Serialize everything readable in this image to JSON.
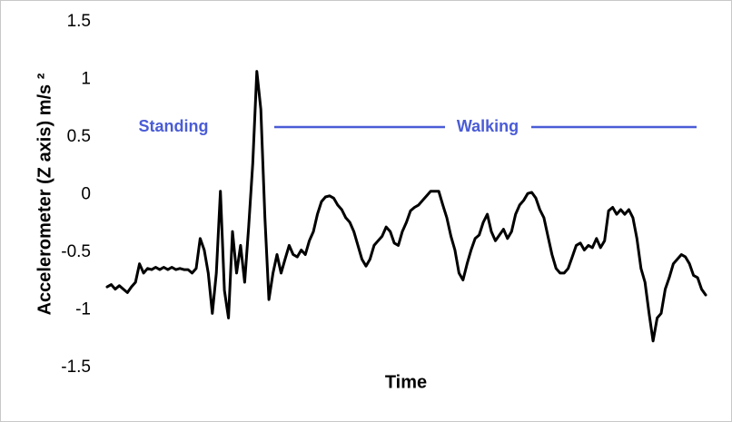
{
  "chart_data": {
    "type": "line",
    "y_label": "Accelerometer (Z axis) m/s ²",
    "x_label": "Time",
    "annotations": [
      {
        "text": "Standing"
      },
      {
        "text": "Walking"
      }
    ],
    "annotation_color": "#4a5cd6",
    "color": "#000000",
    "ylim": [
      -1.5,
      1.5
    ],
    "yticks": [
      1.5,
      1,
      0.5,
      0,
      -0.5,
      -1,
      -1.5
    ],
    "grid": false,
    "values": [
      -0.8,
      -0.78,
      -0.82,
      -0.79,
      -0.82,
      -0.85,
      -0.8,
      -0.76,
      -0.6,
      -0.68,
      -0.64,
      -0.65,
      -0.63,
      -0.65,
      -0.63,
      -0.65,
      -0.63,
      -0.65,
      -0.64,
      -0.65,
      -0.65,
      -0.68,
      -0.64,
      -0.38,
      -0.48,
      -0.68,
      -1.03,
      -0.68,
      0.03,
      -0.83,
      -1.07,
      -0.32,
      -0.68,
      -0.44,
      -0.76,
      -0.28,
      0.27,
      1.07,
      0.74,
      -0.2,
      -0.91,
      -0.68,
      -0.52,
      -0.68,
      -0.56,
      -0.44,
      -0.52,
      -0.54,
      -0.48,
      -0.52,
      -0.4,
      -0.32,
      -0.17,
      -0.06,
      -0.02,
      -0.01,
      -0.03,
      -0.09,
      -0.13,
      -0.2,
      -0.24,
      -0.32,
      -0.44,
      -0.56,
      -0.62,
      -0.56,
      -0.44,
      -0.4,
      -0.36,
      -0.28,
      -0.32,
      -0.42,
      -0.44,
      -0.32,
      -0.24,
      -0.14,
      -0.11,
      -0.09,
      -0.05,
      -0.01,
      0.03,
      0.03,
      0.03,
      -0.09,
      -0.2,
      -0.36,
      -0.48,
      -0.68,
      -0.74,
      -0.6,
      -0.48,
      -0.38,
      -0.35,
      -0.24,
      -0.17,
      -0.32,
      -0.4,
      -0.35,
      -0.3,
      -0.38,
      -0.32,
      -0.17,
      -0.09,
      -0.05,
      0.01,
      0.02,
      -0.03,
      -0.13,
      -0.2,
      -0.36,
      -0.52,
      -0.64,
      -0.68,
      -0.68,
      -0.64,
      -0.54,
      -0.44,
      -0.42,
      -0.48,
      -0.44,
      -0.46,
      -0.38,
      -0.46,
      -0.4,
      -0.14,
      -0.11,
      -0.17,
      -0.13,
      -0.17,
      -0.13,
      -0.2,
      -0.38,
      -0.64,
      -0.76,
      -1.03,
      -1.27,
      -1.07,
      -1.03,
      -0.82,
      -0.72,
      -0.6,
      -0.56,
      -0.52,
      -0.54,
      -0.6,
      -0.7,
      -0.72,
      -0.82,
      -0.87
    ]
  }
}
